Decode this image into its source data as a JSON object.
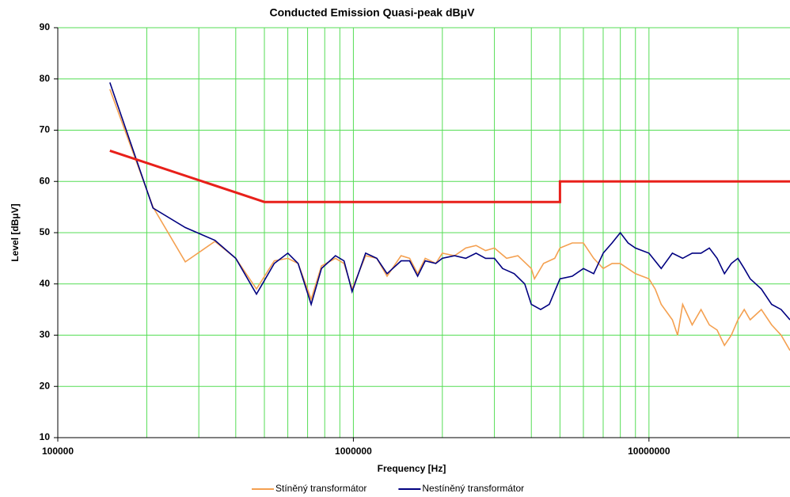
{
  "chart_data": {
    "type": "line",
    "title": "Conducted Emission Quasi-peak dBμV",
    "xlabel": "Frequency [Hz]",
    "ylabel": "Level [dBμV]",
    "xscale": "log",
    "xlim": [
      100000,
      30000000
    ],
    "xticks": [
      100000,
      1000000,
      10000000
    ],
    "ylim": [
      10,
      90
    ],
    "yticks": [
      10,
      20,
      30,
      40,
      50,
      60,
      70,
      80,
      90
    ],
    "grid": true,
    "grid_color": "#55dd55",
    "minor_grid": true,
    "legend": "bottom",
    "limit": {
      "color": "#e8201a",
      "x": [
        150000,
        500000,
        5000000,
        5000000,
        30000000
      ],
      "values": [
        66,
        56,
        56,
        60,
        60
      ]
    },
    "series": [
      {
        "name": "Stíněný transformátor",
        "color": "#f4a050",
        "x": [
          150000,
          210000,
          270000,
          340000,
          400000,
          470000,
          540000,
          600000,
          650000,
          720000,
          780000,
          870000,
          930000,
          990000,
          1100000,
          1200000,
          1300000,
          1450000,
          1550000,
          1650000,
          1750000,
          1900000,
          2000000,
          2200000,
          2400000,
          2600000,
          2800000,
          3000000,
          3300000,
          3600000,
          4000000,
          4100000,
          4400000,
          4800000,
          5000000,
          5500000,
          6000000,
          6500000,
          7000000,
          7500000,
          8000000,
          9000000,
          10000000,
          10500000,
          11000000,
          12000000,
          12500000,
          13000000,
          14000000,
          15000000,
          16000000,
          17000000,
          18000000,
          19000000,
          20000000,
          21000000,
          22000000,
          24000000,
          26000000,
          28000000,
          30000000
        ],
        "values": [
          78,
          55,
          44.3,
          48.3,
          45,
          39,
          44.5,
          45,
          44,
          37,
          43.5,
          45,
          44,
          39,
          45.5,
          45,
          41.5,
          45.5,
          45,
          42,
          45,
          44,
          46,
          45.5,
          47,
          47.5,
          46.5,
          47,
          45,
          45.5,
          43,
          41,
          44,
          45,
          47,
          48,
          48,
          45,
          43,
          44,
          44,
          42,
          41,
          39,
          36,
          33,
          30,
          36,
          32,
          35,
          32,
          31,
          28,
          30,
          33,
          35,
          33,
          35,
          32,
          30,
          27
        ]
      },
      {
        "name": "Nestíněný transformátor",
        "color": "#000080",
        "x": [
          150000,
          210000,
          270000,
          340000,
          400000,
          470000,
          540000,
          600000,
          650000,
          720000,
          780000,
          870000,
          930000,
          990000,
          1100000,
          1200000,
          1300000,
          1450000,
          1550000,
          1650000,
          1750000,
          1900000,
          2000000,
          2200000,
          2400000,
          2600000,
          2800000,
          3000000,
          3200000,
          3500000,
          3800000,
          4000000,
          4300000,
          4600000,
          5000000,
          5500000,
          6000000,
          6500000,
          7000000,
          7500000,
          8000000,
          8500000,
          9000000,
          10000000,
          11000000,
          12000000,
          13000000,
          14000000,
          15000000,
          16000000,
          17000000,
          18000000,
          19000000,
          20000000,
          21000000,
          22000000,
          24000000,
          26000000,
          28000000,
          30000000
        ],
        "values": [
          79.3,
          54.8,
          51,
          48.5,
          45,
          38,
          44,
          46,
          44,
          36,
          43,
          45.5,
          44.5,
          38.5,
          46,
          45,
          42,
          44.5,
          44.5,
          41.5,
          44.5,
          44,
          45,
          45.5,
          45,
          46,
          45,
          45,
          43,
          42,
          40,
          36,
          35,
          36,
          41,
          41.5,
          43,
          42,
          46,
          48,
          50,
          48,
          47,
          46,
          43,
          46,
          45,
          46,
          46,
          47,
          45,
          42,
          44,
          45,
          43,
          41,
          39,
          36,
          35,
          33
        ]
      }
    ]
  }
}
